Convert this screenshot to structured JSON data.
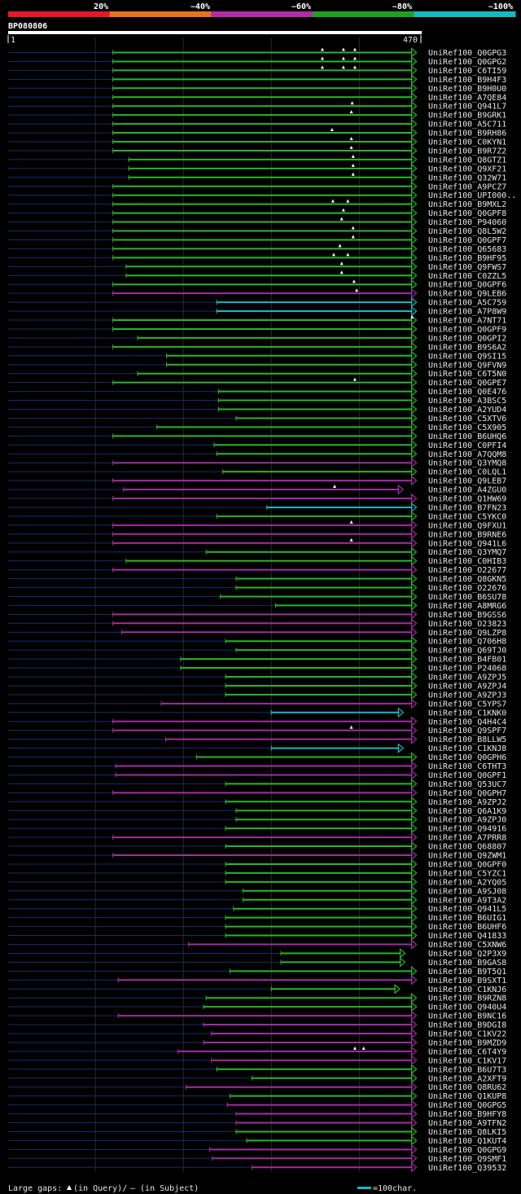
{
  "header": {
    "bar_labels": [
      "20%",
      "~40%",
      "~60%",
      "~80%",
      "~100%"
    ],
    "bar_colors": [
      "#e8162a",
      "#e8731f",
      "#b52aa8",
      "#1fa11f",
      "#17b8c4"
    ],
    "query_name": "BP080806",
    "ruler_start": "1",
    "ruler_end": "470"
  },
  "legend": {
    "gaps_text": "Large gaps:",
    "in_query": "(in Query)/",
    "in_subject": "– (in Subject)",
    "scale_text": "=100char."
  },
  "chart_data": {
    "type": "alignment",
    "title": "BP080806",
    "x_range": [
      1,
      470
    ],
    "color_map": {
      "g": "#2ab52a",
      "p": "#a02ea0",
      "c": "#17b8c4"
    },
    "hits": [
      {
        "name": "UniRef100_Q0GPG3",
        "start": 120,
        "end": 465,
        "color": "g",
        "gaps": [
          358,
          382,
          395
        ]
      },
      {
        "name": "UniRef100_Q0GPG2",
        "start": 120,
        "end": 465,
        "color": "g",
        "gaps": [
          358,
          382,
          395
        ]
      },
      {
        "name": "UniRef100_C6TI59",
        "start": 120,
        "end": 465,
        "color": "g",
        "gaps": [
          358,
          382,
          395
        ]
      },
      {
        "name": "UniRef100_B9H4F3",
        "start": 120,
        "end": 465,
        "color": "g",
        "gaps": []
      },
      {
        "name": "UniRef100_B9H0U0",
        "start": 120,
        "end": 465,
        "color": "g",
        "gaps": []
      },
      {
        "name": "UniRef100_A7QE84",
        "start": 120,
        "end": 465,
        "color": "g",
        "gaps": []
      },
      {
        "name": "UniRef100_Q941L7",
        "start": 120,
        "end": 465,
        "color": "g",
        "gaps": [
          392
        ]
      },
      {
        "name": "UniRef100_B9GRK1",
        "start": 120,
        "end": 465,
        "color": "g",
        "gaps": [
          391
        ]
      },
      {
        "name": "UniRef100_A5C711",
        "start": 120,
        "end": 465,
        "color": "g",
        "gaps": []
      },
      {
        "name": "UniRef100_B9RH86",
        "start": 120,
        "end": 465,
        "color": "g",
        "gaps": [
          369
        ]
      },
      {
        "name": "UniRef100_C0KYN1",
        "start": 120,
        "end": 465,
        "color": "g",
        "gaps": [
          391
        ]
      },
      {
        "name": "UniRef100_B9R7Z2",
        "start": 120,
        "end": 465,
        "color": "g",
        "gaps": [
          391
        ]
      },
      {
        "name": "UniRef100_Q8GTZ1",
        "start": 138,
        "end": 465,
        "color": "g",
        "gaps": [
          393
        ]
      },
      {
        "name": "UniRef100_Q9XF21",
        "start": 138,
        "end": 465,
        "color": "g",
        "gaps": [
          393
        ]
      },
      {
        "name": "UniRef100_Q32W71",
        "start": 138,
        "end": 465,
        "color": "g",
        "gaps": [
          393
        ]
      },
      {
        "name": "UniRef100_A9PCZ7",
        "start": 120,
        "end": 465,
        "color": "g",
        "gaps": []
      },
      {
        "name": "UniRef100_UPI000..",
        "start": 120,
        "end": 465,
        "color": "g",
        "gaps": []
      },
      {
        "name": "UniRef100_B9MXL2",
        "start": 120,
        "end": 465,
        "color": "g",
        "gaps": [
          370,
          387
        ]
      },
      {
        "name": "UniRef100_Q0GPF8",
        "start": 120,
        "end": 465,
        "color": "g",
        "gaps": [
          382
        ]
      },
      {
        "name": "UniRef100_P94060",
        "start": 120,
        "end": 465,
        "color": "g",
        "gaps": [
          380
        ]
      },
      {
        "name": "UniRef100_Q8L5W2",
        "start": 120,
        "end": 465,
        "color": "g",
        "gaps": [
          393
        ]
      },
      {
        "name": "UniRef100_Q0GPF7",
        "start": 120,
        "end": 465,
        "color": "g",
        "gaps": [
          393
        ]
      },
      {
        "name": "UniRef100_Q65683",
        "start": 120,
        "end": 465,
        "color": "g",
        "gaps": [
          378
        ]
      },
      {
        "name": "UniRef100_B9HF95",
        "start": 120,
        "end": 465,
        "color": "g",
        "gaps": [
          371,
          387
        ]
      },
      {
        "name": "UniRef100_Q9FWS7",
        "start": 135,
        "end": 465,
        "color": "g",
        "gaps": [
          380
        ]
      },
      {
        "name": "UniRef100_C0ZZL5",
        "start": 135,
        "end": 465,
        "color": "g",
        "gaps": [
          380
        ]
      },
      {
        "name": "UniRef100_Q0GPF6",
        "start": 120,
        "end": 465,
        "color": "g",
        "gaps": [
          394
        ]
      },
      {
        "name": "UniRef100_Q9LEB6",
        "start": 120,
        "end": 465,
        "color": "p",
        "gaps": [
          397
        ]
      },
      {
        "name": "UniRef100_A5C759",
        "start": 238,
        "end": 465,
        "color": "c",
        "gaps": []
      },
      {
        "name": "UniRef100_A7P8W9",
        "start": 238,
        "end": 465,
        "color": "c",
        "gaps": []
      },
      {
        "name": "UniRef100_A7NT71",
        "start": 120,
        "end": 465,
        "color": "g",
        "gaps": [
          460
        ]
      },
      {
        "name": "UniRef100_Q0GPF9",
        "start": 120,
        "end": 465,
        "color": "g",
        "gaps": []
      },
      {
        "name": "UniRef100_Q0GPI2",
        "start": 148,
        "end": 465,
        "color": "g",
        "gaps": []
      },
      {
        "name": "UniRef100_B9S6A2",
        "start": 120,
        "end": 465,
        "color": "g",
        "gaps": []
      },
      {
        "name": "UniRef100_Q9SI15",
        "start": 181,
        "end": 465,
        "color": "g",
        "gaps": []
      },
      {
        "name": "UniRef100_Q9FVN9",
        "start": 181,
        "end": 465,
        "color": "g",
        "gaps": []
      },
      {
        "name": "UniRef100_C6T5N0",
        "start": 148,
        "end": 465,
        "color": "g",
        "gaps": []
      },
      {
        "name": "UniRef100_Q0GPE7",
        "start": 120,
        "end": 465,
        "color": "g",
        "gaps": [
          395
        ]
      },
      {
        "name": "UniRef100_Q0E476",
        "start": 240,
        "end": 465,
        "color": "g",
        "gaps": []
      },
      {
        "name": "UniRef100_A3BSC5",
        "start": 240,
        "end": 465,
        "color": "g",
        "gaps": []
      },
      {
        "name": "UniRef100_A2YUD4",
        "start": 240,
        "end": 465,
        "color": "g",
        "gaps": []
      },
      {
        "name": "UniRef100_C5XTV6",
        "start": 260,
        "end": 465,
        "color": "g",
        "gaps": []
      },
      {
        "name": "UniRef100_C5X905",
        "start": 170,
        "end": 465,
        "color": "g",
        "gaps": []
      },
      {
        "name": "UniRef100_B6UHQ6",
        "start": 120,
        "end": 465,
        "color": "g",
        "gaps": []
      },
      {
        "name": "UniRef100_C0PFI4",
        "start": 235,
        "end": 465,
        "color": "g",
        "gaps": []
      },
      {
        "name": "UniRef100_A7QQM8",
        "start": 238,
        "end": 465,
        "color": "g",
        "gaps": []
      },
      {
        "name": "UniRef100_Q3YMQ8",
        "start": 120,
        "end": 465,
        "color": "p",
        "gaps": []
      },
      {
        "name": "UniRef100_C0LQL1",
        "start": 245,
        "end": 465,
        "color": "g",
        "gaps": []
      },
      {
        "name": "UniRef100_Q9LEB7",
        "start": 120,
        "end": 465,
        "color": "p",
        "gaps": []
      },
      {
        "name": "UniRef100_A4ZGU0",
        "start": 132,
        "end": 450,
        "color": "p",
        "gaps": [
          372
        ]
      },
      {
        "name": "UniRef100_Q1HW69",
        "start": 120,
        "end": 465,
        "color": "p",
        "gaps": []
      },
      {
        "name": "UniRef100_B7FN23",
        "start": 295,
        "end": 465,
        "color": "c",
        "gaps": []
      },
      {
        "name": "UniRef100_C5YKC0",
        "start": 238,
        "end": 465,
        "color": "g",
        "gaps": []
      },
      {
        "name": "UniRef100_Q9FXU1",
        "start": 120,
        "end": 465,
        "color": "p",
        "gaps": [
          391
        ]
      },
      {
        "name": "UniRef100_B9RNE6",
        "start": 120,
        "end": 465,
        "color": "p",
        "gaps": []
      },
      {
        "name": "UniRef100_Q941L6",
        "start": 120,
        "end": 465,
        "color": "p",
        "gaps": [
          391
        ]
      },
      {
        "name": "UniRef100_Q3YMQ7",
        "start": 226,
        "end": 465,
        "color": "g",
        "gaps": []
      },
      {
        "name": "UniRef100_C0HIB3",
        "start": 135,
        "end": 465,
        "color": "g",
        "gaps": []
      },
      {
        "name": "UniRef100_O22677",
        "start": 120,
        "end": 465,
        "color": "p",
        "gaps": []
      },
      {
        "name": "UniRef100_Q8GKN5",
        "start": 260,
        "end": 465,
        "color": "g",
        "gaps": []
      },
      {
        "name": "UniRef100_O22676",
        "start": 260,
        "end": 465,
        "color": "g",
        "gaps": []
      },
      {
        "name": "UniRef100_B6SU78",
        "start": 242,
        "end": 465,
        "color": "g",
        "gaps": []
      },
      {
        "name": "UniRef100_A8MRG6",
        "start": 305,
        "end": 465,
        "color": "g",
        "gaps": []
      },
      {
        "name": "UniRef100_B9GSS6",
        "start": 120,
        "end": 465,
        "color": "p",
        "gaps": []
      },
      {
        "name": "UniRef100_O23823",
        "start": 120,
        "end": 465,
        "color": "p",
        "gaps": []
      },
      {
        "name": "UniRef100_Q9LZP8",
        "start": 130,
        "end": 465,
        "color": "p",
        "gaps": []
      },
      {
        "name": "UniRef100_Q706H8",
        "start": 248,
        "end": 465,
        "color": "g",
        "gaps": []
      },
      {
        "name": "UniRef100_Q69TJ0",
        "start": 260,
        "end": 465,
        "color": "g",
        "gaps": []
      },
      {
        "name": "UniRef100_B4FB01",
        "start": 197,
        "end": 465,
        "color": "g",
        "gaps": []
      },
      {
        "name": "UniRef100_P24068",
        "start": 197,
        "end": 465,
        "color": "g",
        "gaps": []
      },
      {
        "name": "UniRef100_A9ZPJ5",
        "start": 248,
        "end": 465,
        "color": "g",
        "gaps": []
      },
      {
        "name": "UniRef100_A9ZPJ4",
        "start": 248,
        "end": 465,
        "color": "g",
        "gaps": []
      },
      {
        "name": "UniRef100_A9ZPJ3",
        "start": 248,
        "end": 465,
        "color": "g",
        "gaps": []
      },
      {
        "name": "UniRef100_C5YPS7",
        "start": 175,
        "end": 465,
        "color": "p",
        "gaps": []
      },
      {
        "name": "UniRef100_C1KNK0",
        "start": 300,
        "end": 450,
        "color": "c",
        "gaps": []
      },
      {
        "name": "UniRef100_Q4H4C4",
        "start": 120,
        "end": 465,
        "color": "p",
        "gaps": []
      },
      {
        "name": "UniRef100_Q9SPF7",
        "start": 120,
        "end": 465,
        "color": "p",
        "gaps": [
          391
        ]
      },
      {
        "name": "UniRef100_B8LLW5",
        "start": 180,
        "end": 465,
        "color": "p",
        "gaps": []
      },
      {
        "name": "UniRef100_C1KNJ8",
        "start": 300,
        "end": 450,
        "color": "c",
        "gaps": []
      },
      {
        "name": "UniRef100_Q0GPH6",
        "start": 215,
        "end": 465,
        "color": "g",
        "gaps": []
      },
      {
        "name": "UniRef100_C6THT3",
        "start": 123,
        "end": 465,
        "color": "p",
        "gaps": []
      },
      {
        "name": "UniRef100_Q0GPF1",
        "start": 123,
        "end": 465,
        "color": "p",
        "gaps": []
      },
      {
        "name": "UniRef100_Q53UC7",
        "start": 248,
        "end": 465,
        "color": "g",
        "gaps": []
      },
      {
        "name": "UniRef100_Q0GPH7",
        "start": 120,
        "end": 465,
        "color": "p",
        "gaps": []
      },
      {
        "name": "UniRef100_A9ZPJ2",
        "start": 248,
        "end": 465,
        "color": "g",
        "gaps": []
      },
      {
        "name": "UniRef100_Q6A1K9",
        "start": 260,
        "end": 465,
        "color": "g",
        "gaps": []
      },
      {
        "name": "UniRef100_A9ZPJ0",
        "start": 260,
        "end": 465,
        "color": "g",
        "gaps": []
      },
      {
        "name": "UniRef100_Q94916",
        "start": 248,
        "end": 465,
        "color": "g",
        "gaps": []
      },
      {
        "name": "UniRef100_A7PRR8",
        "start": 120,
        "end": 465,
        "color": "p",
        "gaps": []
      },
      {
        "name": "UniRef100_Q68807",
        "start": 248,
        "end": 465,
        "color": "g",
        "gaps": []
      },
      {
        "name": "UniRef100_Q9ZWM1",
        "start": 120,
        "end": 465,
        "color": "p",
        "gaps": []
      },
      {
        "name": "UniRef100_Q0GPF0",
        "start": 248,
        "end": 465,
        "color": "g",
        "gaps": []
      },
      {
        "name": "UniRef100_C5YZC1",
        "start": 248,
        "end": 465,
        "color": "g",
        "gaps": []
      },
      {
        "name": "UniRef100_A2YQ05",
        "start": 248,
        "end": 465,
        "color": "g",
        "gaps": []
      },
      {
        "name": "UniRef100_A9SJ08",
        "start": 268,
        "end": 465,
        "color": "g",
        "gaps": []
      },
      {
        "name": "UniRef100_A9T3A2",
        "start": 268,
        "end": 465,
        "color": "g",
        "gaps": []
      },
      {
        "name": "UniRef100_Q941L5",
        "start": 257,
        "end": 465,
        "color": "g",
        "gaps": []
      },
      {
        "name": "UniRef100_B6UIG1",
        "start": 248,
        "end": 465,
        "color": "g",
        "gaps": []
      },
      {
        "name": "UniRef100_B6UHF6",
        "start": 248,
        "end": 465,
        "color": "g",
        "gaps": []
      },
      {
        "name": "UniRef100_Q41833",
        "start": 248,
        "end": 465,
        "color": "g",
        "gaps": []
      },
      {
        "name": "UniRef100_C5XNW6",
        "start": 206,
        "end": 465,
        "color": "p",
        "gaps": []
      },
      {
        "name": "UniRef100_Q2P3X9",
        "start": 311,
        "end": 452,
        "color": "g",
        "gaps": []
      },
      {
        "name": "UniRef100_B9GAS8",
        "start": 311,
        "end": 452,
        "color": "g",
        "gaps": []
      },
      {
        "name": "UniRef100_B9T5Q1",
        "start": 253,
        "end": 465,
        "color": "g",
        "gaps": []
      },
      {
        "name": "UniRef100_B9SXT1",
        "start": 126,
        "end": 465,
        "color": "p",
        "gaps": []
      },
      {
        "name": "UniRef100_C1KNJ6",
        "start": 300,
        "end": 446,
        "color": "g",
        "gaps": []
      },
      {
        "name": "UniRef100_B9RZN8",
        "start": 226,
        "end": 465,
        "color": "g",
        "gaps": []
      },
      {
        "name": "UniRef100_Q940U4",
        "start": 223,
        "end": 465,
        "color": "g",
        "gaps": []
      },
      {
        "name": "UniRef100_B9NC16",
        "start": 126,
        "end": 465,
        "color": "p",
        "gaps": []
      },
      {
        "name": "UniRef100_B9DGI8",
        "start": 223,
        "end": 465,
        "color": "p",
        "gaps": []
      },
      {
        "name": "UniRef100_C1KV22",
        "start": 232,
        "end": 465,
        "color": "p",
        "gaps": []
      },
      {
        "name": "UniRef100_B9MZD9",
        "start": 223,
        "end": 465,
        "color": "p",
        "gaps": []
      },
      {
        "name": "UniRef100_C6T4Y9",
        "start": 194,
        "end": 465,
        "color": "p",
        "gaps": [
          395,
          405
        ]
      },
      {
        "name": "UniRef100_C1KV17",
        "start": 232,
        "end": 465,
        "color": "p",
        "gaps": []
      },
      {
        "name": "UniRef100_B6U7T3",
        "start": 238,
        "end": 465,
        "color": "g",
        "gaps": []
      },
      {
        "name": "UniRef100_A2XFT9",
        "start": 278,
        "end": 465,
        "color": "g",
        "gaps": []
      },
      {
        "name": "UniRef100_Q8RU62",
        "start": 203,
        "end": 465,
        "color": "p",
        "gaps": []
      },
      {
        "name": "UniRef100_Q1KUP8",
        "start": 253,
        "end": 465,
        "color": "g",
        "gaps": []
      },
      {
        "name": "UniRef100_Q0GPG5",
        "start": 250,
        "end": 465,
        "color": "p",
        "gaps": []
      },
      {
        "name": "UniRef100_B9HFY8",
        "start": 260,
        "end": 465,
        "color": "p",
        "gaps": []
      },
      {
        "name": "UniRef100_A9TFN2",
        "start": 260,
        "end": 465,
        "color": "p",
        "gaps": []
      },
      {
        "name": "UniRef100_Q8LKI5",
        "start": 260,
        "end": 465,
        "color": "g",
        "gaps": []
      },
      {
        "name": "UniRef100_Q1KUT4",
        "start": 272,
        "end": 465,
        "color": "g",
        "gaps": []
      },
      {
        "name": "UniRef100_Q0GPG9",
        "start": 230,
        "end": 465,
        "color": "p",
        "gaps": []
      },
      {
        "name": "UniRef100_Q9SMF1",
        "start": 233,
        "end": 465,
        "color": "p",
        "gaps": []
      },
      {
        "name": "UniRef100_Q39532",
        "start": 278,
        "end": 465,
        "color": "p",
        "gaps": []
      }
    ]
  }
}
